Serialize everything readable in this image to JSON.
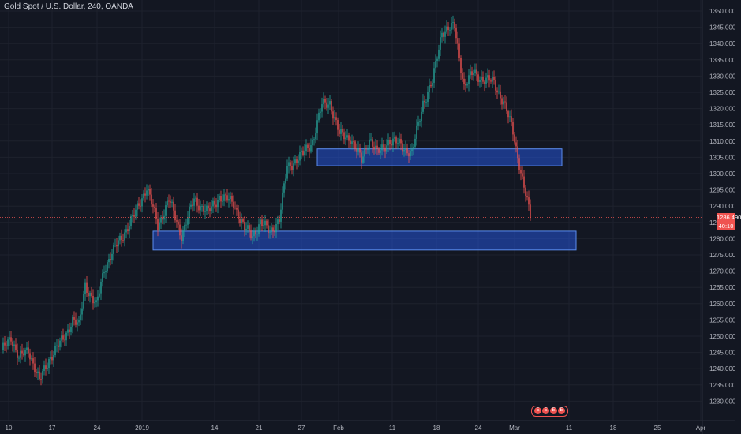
{
  "title": "Gold Spot / U.S. Dollar, 240, OANDA",
  "price_label": "1286.490",
  "countdown_label": "40:10",
  "nav_badges": [
    "E",
    "E",
    "E",
    "E"
  ],
  "colors": {
    "background": "#131722",
    "grid": "#1e222d",
    "up": "#26a69a",
    "down": "#ef5350",
    "zone_fill": "#2962ff",
    "axis_text": "#b2b5be",
    "price_line": "#ef5350"
  },
  "chart_data": {
    "type": "candlestick",
    "title": "Gold Spot / U.S. Dollar, 240, OANDA",
    "xlabel": "",
    "ylabel": "",
    "ylim": [
      1227,
      1352
    ],
    "grid": true,
    "x_tick_labels": [
      "10",
      "17",
      "24",
      "2019",
      "14",
      "21",
      "27",
      "Feb",
      "11",
      "18",
      "24",
      "Mar",
      "11",
      "18",
      "25",
      "Apr"
    ],
    "y_tick_labels": [
      "1350.000",
      "1345.000",
      "1340.000",
      "1335.000",
      "1330.000",
      "1325.000",
      "1320.000",
      "1315.000",
      "1310.000",
      "1305.000",
      "1300.000",
      "1295.000",
      "1290.000",
      "1285.000",
      "1280.000",
      "1275.000",
      "1270.000",
      "1265.000",
      "1260.000",
      "1255.000",
      "1250.000",
      "1245.000",
      "1240.000",
      "1235.000",
      "1230.000"
    ],
    "price_anchors": [
      {
        "bar": 0,
        "price": 1245
      },
      {
        "bar": 6,
        "price": 1250
      },
      {
        "bar": 11,
        "price": 1243
      },
      {
        "bar": 17,
        "price": 1246
      },
      {
        "bar": 24,
        "price": 1236
      },
      {
        "bar": 30,
        "price": 1243
      },
      {
        "bar": 39,
        "price": 1249
      },
      {
        "bar": 45,
        "price": 1255
      },
      {
        "bar": 49,
        "price": 1253
      },
      {
        "bar": 53,
        "price": 1266
      },
      {
        "bar": 60,
        "price": 1259
      },
      {
        "bar": 65,
        "price": 1271
      },
      {
        "bar": 73,
        "price": 1278
      },
      {
        "bar": 84,
        "price": 1287
      },
      {
        "bar": 92,
        "price": 1296
      },
      {
        "bar": 99,
        "price": 1284
      },
      {
        "bar": 106,
        "price": 1292
      },
      {
        "bar": 114,
        "price": 1281
      },
      {
        "bar": 122,
        "price": 1292
      },
      {
        "bar": 131,
        "price": 1288
      },
      {
        "bar": 138,
        "price": 1293
      },
      {
        "bar": 147,
        "price": 1291
      },
      {
        "bar": 154,
        "price": 1283
      },
      {
        "bar": 159,
        "price": 1281
      },
      {
        "bar": 164,
        "price": 1285
      },
      {
        "bar": 170,
        "price": 1282
      },
      {
        "bar": 176,
        "price": 1286
      },
      {
        "bar": 181,
        "price": 1302
      },
      {
        "bar": 191,
        "price": 1306
      },
      {
        "bar": 197,
        "price": 1310
      },
      {
        "bar": 203,
        "price": 1321
      },
      {
        "bar": 208,
        "price": 1322
      },
      {
        "bar": 214,
        "price": 1312
      },
      {
        "bar": 221,
        "price": 1311
      },
      {
        "bar": 228,
        "price": 1304
      },
      {
        "bar": 233,
        "price": 1311
      },
      {
        "bar": 238,
        "price": 1306
      },
      {
        "bar": 245,
        "price": 1310
      },
      {
        "bar": 253,
        "price": 1309
      },
      {
        "bar": 260,
        "price": 1306
      },
      {
        "bar": 267,
        "price": 1322
      },
      {
        "bar": 273,
        "price": 1328
      },
      {
        "bar": 279,
        "price": 1344
      },
      {
        "bar": 287,
        "price": 1345
      },
      {
        "bar": 293,
        "price": 1327
      },
      {
        "bar": 299,
        "price": 1331
      },
      {
        "bar": 305,
        "price": 1329
      },
      {
        "bar": 312,
        "price": 1328
      },
      {
        "bar": 318,
        "price": 1322
      },
      {
        "bar": 324,
        "price": 1313
      },
      {
        "bar": 330,
        "price": 1298
      },
      {
        "bar": 335,
        "price": 1286.5
      }
    ],
    "zones": [
      {
        "bar_start": 96,
        "bar_end": 364,
        "price_high": 1282.3,
        "price_low": 1276.5
      },
      {
        "bar_start": 200,
        "bar_end": 355,
        "price_high": 1307.6,
        "price_low": 1302.4
      }
    ],
    "last_price": 1286.49
  }
}
